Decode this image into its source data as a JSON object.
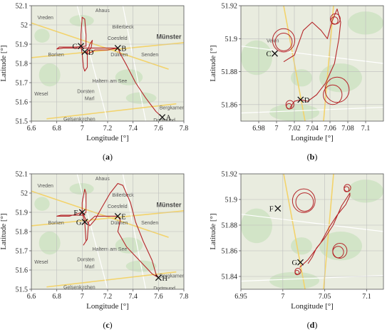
{
  "colors": {
    "track": "#b5262a",
    "map_bg": "#e9ecdf",
    "green": "#cfe3c4",
    "road_major": "#f3d36b",
    "road_minor": "#ffffff",
    "axis": "#555555",
    "grid": "#bdbdbd"
  },
  "chart_data": [
    {
      "id": "a",
      "type": "line",
      "caption_letter": "a",
      "xlabel": "Longitude [°]",
      "ylabel": "Latitude [°]",
      "xlim": [
        6.6,
        7.8
      ],
      "ylim": [
        51.5,
        52.1
      ],
      "xticks": [
        "6.6",
        "6.8",
        "7",
        "7.2",
        "7.4",
        "7.6",
        "7.8"
      ],
      "yticks": [
        "51.5",
        "51.6",
        "51.7",
        "51.8",
        "51.9",
        "52",
        "52.1"
      ],
      "grid": true,
      "cities": [
        "Ahaus",
        "Vreden",
        "Billerbeck",
        "Coesfeld",
        "Münster",
        "Borken",
        "Dülmen",
        "Senden",
        "Haltern am See",
        "Dorsten",
        "Marl",
        "Wesel",
        "Bergkamen",
        "Gelsenkirchen",
        "Dortmund"
      ],
      "points": [
        {
          "label": "A",
          "x": 7.63,
          "y": 51.52
        },
        {
          "label": "B",
          "x": 7.28,
          "y": 51.88
        },
        {
          "label": "C",
          "x": 6.99,
          "y": 51.89
        },
        {
          "label": "D",
          "x": 7.02,
          "y": 51.86
        }
      ],
      "track": [
        [
          7.63,
          51.52
        ],
        [
          7.58,
          51.55
        ],
        [
          7.5,
          51.62
        ],
        [
          7.42,
          51.7
        ],
        [
          7.35,
          51.79
        ],
        [
          7.3,
          51.85
        ],
        [
          7.28,
          51.88
        ],
        [
          7.2,
          51.88
        ],
        [
          7.1,
          51.88
        ],
        [
          7.03,
          51.88
        ],
        [
          6.95,
          51.88
        ],
        [
          6.85,
          51.88
        ],
        [
          6.8,
          51.875
        ],
        [
          6.82,
          51.885
        ],
        [
          6.95,
          51.885
        ],
        [
          7.03,
          51.89
        ],
        [
          7.03,
          51.95
        ],
        [
          7.02,
          52.03
        ],
        [
          7.0,
          52.04
        ],
        [
          6.99,
          51.95
        ],
        [
          6.99,
          51.89
        ],
        [
          7.0,
          51.85
        ],
        [
          7.01,
          51.78
        ],
        [
          7.02,
          51.76
        ],
        [
          7.04,
          51.78
        ],
        [
          7.04,
          51.86
        ],
        [
          7.06,
          51.9
        ],
        [
          7.08,
          51.92
        ],
        [
          7.07,
          51.88
        ],
        [
          7.04,
          51.86
        ],
        [
          7.02,
          51.86
        ],
        [
          7.05,
          51.85
        ],
        [
          7.1,
          51.87
        ],
        [
          7.2,
          51.87
        ],
        [
          7.28,
          51.88
        ]
      ]
    },
    {
      "id": "b",
      "type": "line",
      "caption_letter": "b",
      "xlabel": "Longitude [°]",
      "ylabel": "Latitude [°]",
      "xlim": [
        6.96,
        7.12
      ],
      "ylim": [
        51.85,
        51.92
      ],
      "xticks": [
        "6.98",
        "7",
        "7.02",
        "7.04",
        "7.06",
        "7.08",
        "7.1"
      ],
      "yticks": [
        "51.86",
        "51.88",
        "51.9",
        "51.92"
      ],
      "grid": true,
      "cities": [
        "Velen"
      ],
      "points": [
        {
          "label": "C",
          "x": 6.998,
          "y": 51.891
        },
        {
          "label": "D",
          "x": 7.027,
          "y": 51.863
        }
      ],
      "loops": [
        {
          "cx": 7.008,
          "cy": 51.899,
          "r": 0.0125
        },
        {
          "cx": 7.008,
          "cy": 51.898,
          "r": 0.0095
        },
        {
          "cx": 7.066,
          "cy": 51.912,
          "r": 0.0055
        },
        {
          "cx": 7.065,
          "cy": 51.911,
          "r": 0.004
        },
        {
          "cx": 7.068,
          "cy": 51.869,
          "r": 0.0135
        },
        {
          "cx": 7.063,
          "cy": 51.866,
          "r": 0.0105
        },
        {
          "cx": 7.015,
          "cy": 51.86,
          "r": 0.0045
        },
        {
          "cx": 7.014,
          "cy": 51.859,
          "r": 0.003
        }
      ],
      "track": [
        [
          7.008,
          51.886
        ],
        [
          7.02,
          51.89
        ],
        [
          7.03,
          51.905
        ],
        [
          7.04,
          51.91
        ],
        [
          7.05,
          51.905
        ],
        [
          7.057,
          51.9
        ],
        [
          7.062,
          51.91
        ],
        [
          7.068,
          51.918
        ],
        [
          7.072,
          51.91
        ],
        [
          7.07,
          51.9
        ],
        [
          7.065,
          51.885
        ],
        [
          7.055,
          51.873
        ],
        [
          7.045,
          51.866
        ],
        [
          7.035,
          51.862
        ],
        [
          7.027,
          51.863
        ],
        [
          7.02,
          51.862
        ],
        [
          7.015,
          51.858
        ]
      ]
    },
    {
      "id": "c",
      "type": "line",
      "caption_letter": "c",
      "xlabel": "Longitude [°]",
      "ylabel": "Latitude [°]",
      "xlim": [
        6.6,
        7.8
      ],
      "ylim": [
        51.5,
        52.1
      ],
      "xticks": [
        "6.6",
        "6.8",
        "7",
        "7.2",
        "7.4",
        "7.6",
        "7.8"
      ],
      "yticks": [
        "51.5",
        "51.6",
        "51.7",
        "51.8",
        "51.9",
        "52",
        "52.1"
      ],
      "grid": true,
      "cities": [
        "Ahaus",
        "Vreden",
        "Billerbeck",
        "Coesfeld",
        "Münster",
        "Borken",
        "Dülmen",
        "Senden",
        "Haltern am See",
        "Dorsten",
        "Marl",
        "Wesel",
        "Bergkamen",
        "Gelsenkirchen",
        "Dortmund"
      ],
      "points": [
        {
          "label": "E",
          "x": 7.28,
          "y": 51.88
        },
        {
          "label": "F",
          "x": 7.0,
          "y": 51.9
        },
        {
          "label": "G",
          "x": 7.02,
          "y": 51.85
        },
        {
          "label": "H",
          "x": 7.6,
          "y": 51.56
        }
      ],
      "track": [
        [
          7.6,
          51.56
        ],
        [
          7.58,
          51.58
        ],
        [
          7.55,
          51.65
        ],
        [
          7.48,
          51.75
        ],
        [
          7.42,
          51.85
        ],
        [
          7.38,
          51.95
        ],
        [
          7.32,
          52.04
        ],
        [
          7.28,
          52.05
        ],
        [
          7.22,
          52.0
        ],
        [
          7.15,
          51.92
        ],
        [
          7.1,
          51.86
        ],
        [
          7.06,
          51.83
        ],
        [
          7.03,
          51.86
        ],
        [
          7.0,
          51.9
        ],
        [
          6.9,
          51.88
        ],
        [
          6.8,
          51.88
        ],
        [
          6.83,
          51.885
        ],
        [
          7.0,
          51.885
        ],
        [
          7.03,
          51.9
        ],
        [
          7.03,
          52.0
        ],
        [
          7.02,
          52.02
        ],
        [
          7.0,
          51.95
        ],
        [
          7.0,
          51.9
        ],
        [
          7.02,
          51.85
        ],
        [
          7.03,
          51.75
        ],
        [
          7.01,
          51.73
        ],
        [
          7.04,
          51.76
        ],
        [
          7.05,
          51.85
        ],
        [
          7.1,
          51.88
        ],
        [
          7.2,
          51.88
        ],
        [
          7.28,
          51.88
        ],
        [
          7.3,
          51.86
        ],
        [
          7.28,
          51.8
        ],
        [
          7.35,
          51.72
        ],
        [
          7.45,
          51.65
        ],
        [
          7.55,
          51.58
        ],
        [
          7.6,
          51.56
        ]
      ]
    },
    {
      "id": "d",
      "type": "line",
      "caption_letter": "d",
      "xlabel": "Longitude [°]",
      "ylabel": "Latitude [°]",
      "xlim": [
        6.95,
        7.12
      ],
      "ylim": [
        51.83,
        51.92
      ],
      "xticks": [
        "6.95",
        "7",
        "7.05",
        "7.1"
      ],
      "yticks": [
        "51.84",
        "51.86",
        "51.88",
        "51.9",
        "51.92"
      ],
      "grid": true,
      "cities": [],
      "points": [
        {
          "label": "F",
          "x": 6.994,
          "y": 51.893
        },
        {
          "label": "G",
          "x": 7.021,
          "y": 51.851
        }
      ],
      "loops": [
        {
          "cx": 7.025,
          "cy": 51.899,
          "r": 0.0135
        },
        {
          "cx": 7.026,
          "cy": 51.898,
          "r": 0.0105
        },
        {
          "cx": 7.077,
          "cy": 51.909,
          "r": 0.004
        },
        {
          "cx": 7.076,
          "cy": 51.908,
          "r": 0.003
        },
        {
          "cx": 7.068,
          "cy": 51.86,
          "r": 0.0085
        },
        {
          "cx": 7.066,
          "cy": 51.859,
          "r": 0.0065
        },
        {
          "cx": 7.018,
          "cy": 51.844,
          "r": 0.0035
        },
        {
          "cx": 7.017,
          "cy": 51.843,
          "r": 0.0025
        }
      ],
      "track": [
        [
          7.02,
          51.847
        ],
        [
          7.03,
          51.853
        ],
        [
          7.045,
          51.866
        ],
        [
          7.055,
          51.878
        ],
        [
          7.065,
          51.888
        ],
        [
          7.075,
          51.896
        ],
        [
          7.08,
          51.903
        ],
        [
          7.08,
          51.905
        ],
        [
          7.07,
          51.895
        ],
        [
          7.06,
          51.88
        ],
        [
          7.05,
          51.87
        ],
        [
          7.04,
          51.862
        ],
        [
          7.035,
          51.855
        ],
        [
          7.03,
          51.85
        ]
      ]
    }
  ]
}
